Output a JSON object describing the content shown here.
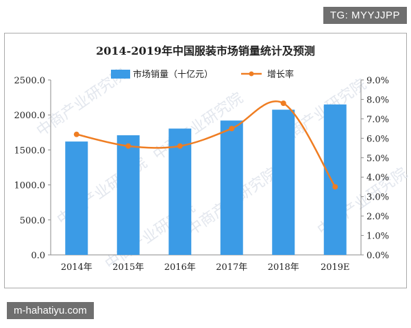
{
  "tag": "TG: MYYJJPP",
  "site": "m-hahatiyu.com",
  "watermark": "中商产业研究院",
  "chart_data": {
    "type": "bar",
    "title": "2014-2019年中国服装市场销量统计及预测",
    "categories": [
      "2014年",
      "2015年",
      "2016年",
      "2017年",
      "2018年",
      "2019E"
    ],
    "series": [
      {
        "name": "市场销量（十亿元）",
        "type": "bar",
        "axis": "left",
        "values": [
          1620,
          1710,
          1805,
          1920,
          2075,
          2150
        ],
        "color": "#3b9be6"
      },
      {
        "name": "增长率",
        "type": "line",
        "axis": "right",
        "values": [
          6.2,
          5.6,
          5.6,
          6.5,
          7.8,
          3.5
        ],
        "color": "#ef7d22"
      }
    ],
    "ylim": [
      0,
      2500
    ],
    "yticks": [
      "0.0",
      "500.0",
      "1000.0",
      "1500.0",
      "2000.0",
      "2500.0"
    ],
    "y2lim": [
      0,
      9
    ],
    "y2ticks": [
      "0.0%",
      "1.0%",
      "2.0%",
      "3.0%",
      "4.0%",
      "5.0%",
      "6.0%",
      "7.0%",
      "8.0%",
      "9.0%"
    ],
    "legend": "top-center",
    "grid": false
  }
}
